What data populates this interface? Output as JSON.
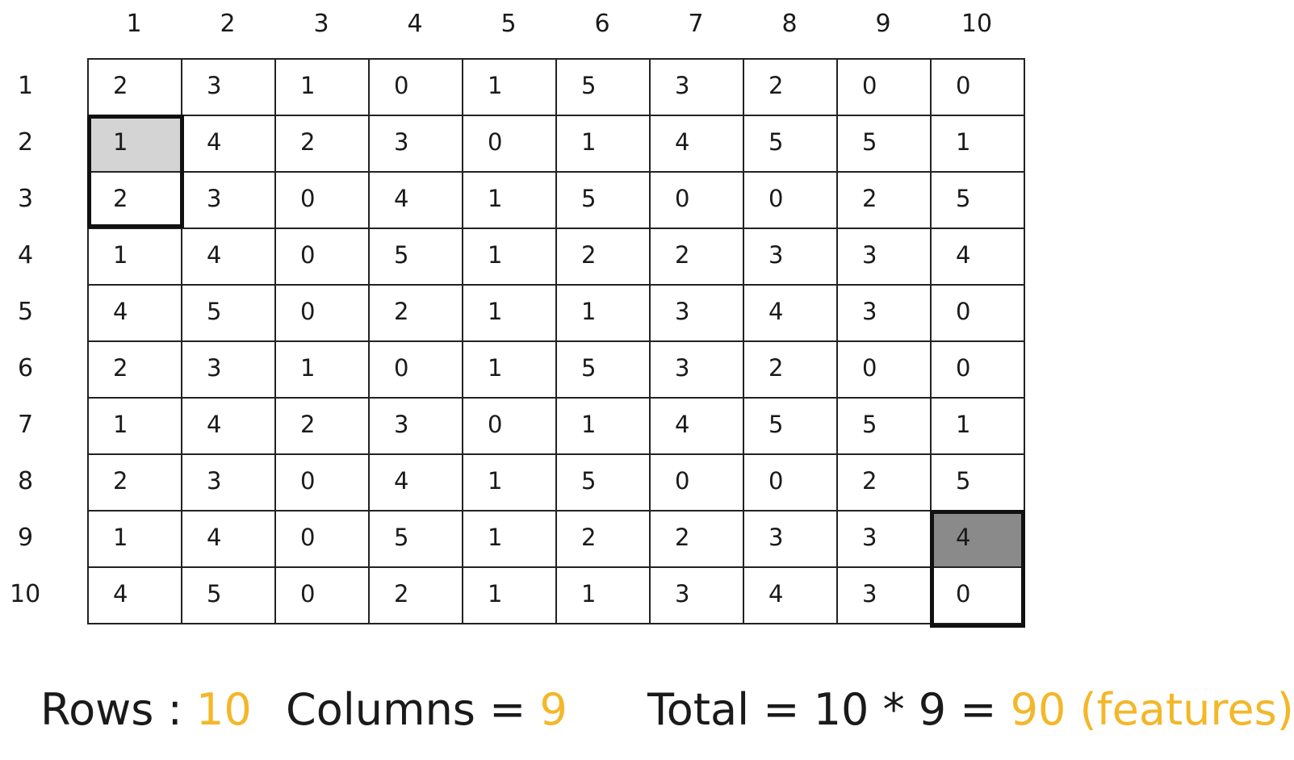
{
  "column_headers": [
    "1",
    "2",
    "3",
    "4",
    "5",
    "6",
    "7",
    "8",
    "9",
    "10"
  ],
  "row_headers": [
    "1",
    "2",
    "3",
    "4",
    "5",
    "6",
    "7",
    "8",
    "9",
    "10"
  ],
  "matrix": [
    [
      "2",
      "3",
      "1",
      "0",
      "1",
      "5",
      "3",
      "2",
      "0",
      "0"
    ],
    [
      "1",
      "4",
      "2",
      "3",
      "0",
      "1",
      "4",
      "5",
      "5",
      "1"
    ],
    [
      "2",
      "3",
      "0",
      "4",
      "1",
      "5",
      "0",
      "0",
      "2",
      "5"
    ],
    [
      "1",
      "4",
      "0",
      "5",
      "1",
      "2",
      "2",
      "3",
      "3",
      "4"
    ],
    [
      "4",
      "5",
      "0",
      "2",
      "1",
      "1",
      "3",
      "4",
      "3",
      "0"
    ],
    [
      "2",
      "3",
      "1",
      "0",
      "1",
      "5",
      "3",
      "2",
      "0",
      "0"
    ],
    [
      "1",
      "4",
      "2",
      "3",
      "0",
      "1",
      "4",
      "5",
      "5",
      "1"
    ],
    [
      "2",
      "3",
      "0",
      "4",
      "1",
      "5",
      "0",
      "0",
      "2",
      "5"
    ],
    [
      "1",
      "4",
      "0",
      "5",
      "1",
      "2",
      "2",
      "3",
      "3",
      "4"
    ],
    [
      "4",
      "5",
      "0",
      "2",
      "1",
      "1",
      "3",
      "4",
      "3",
      "0"
    ]
  ],
  "highlights": {
    "first_window": {
      "shaded_cell": [
        2,
        1
      ],
      "framed_cells": [
        [
          2,
          1
        ],
        [
          3,
          1
        ]
      ],
      "shade": "#d4d4d4"
    },
    "last_window": {
      "shaded_cell": [
        9,
        10
      ],
      "framed_cells": [
        [
          9,
          10
        ],
        [
          10,
          10
        ]
      ],
      "shade": "#8a8a8a"
    }
  },
  "summary": {
    "rows_label": "Rows : ",
    "rows_value": "10",
    "columns_label": "Columns = ",
    "columns_value": "9",
    "total_label": "Total = 10 * 9 = ",
    "total_value": "90 (features)"
  },
  "colors": {
    "accent": "#f3b729",
    "text": "#1a1a1a",
    "grid": "#222222"
  }
}
